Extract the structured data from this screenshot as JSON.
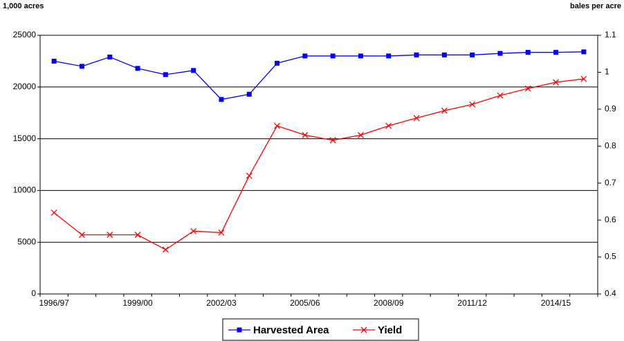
{
  "chart_data": {
    "type": "line",
    "y_label": "1,000 acres",
    "y2_label": "bales per acre",
    "categories": [
      "1996/97",
      null,
      null,
      "1999/00",
      null,
      null,
      "2002/03",
      null,
      null,
      "2005/06",
      null,
      null,
      "2008/09",
      null,
      null,
      "2011/12",
      null,
      null,
      "2014/15",
      null
    ],
    "series": [
      {
        "name": "Harvested Area",
        "color": "#0000ff",
        "marker": "square",
        "values": [
          22500,
          22000,
          22900,
          21800,
          21200,
          21600,
          18800,
          19300,
          22300,
          23000,
          23000,
          23000,
          23000,
          23100,
          23100,
          23100,
          23250,
          23350,
          23350,
          23400
        ]
      },
      {
        "name": "Yield",
        "color": "#ff0000",
        "marker": "x",
        "axis": "y2",
        "values": [
          0.62,
          0.56,
          0.56,
          0.56,
          0.52,
          0.57,
          0.566,
          0.72,
          0.855,
          0.83,
          0.816,
          0.83,
          0.855,
          0.876,
          0.896,
          0.913,
          0.937,
          0.956,
          0.973,
          0.982
        ]
      }
    ],
    "ylim": [
      0,
      25000
    ],
    "yticks": [
      0,
      5000,
      10000,
      15000,
      20000,
      25000
    ],
    "y2lim": [
      0.4,
      1.1
    ],
    "y2ticks": [
      0.4,
      0.5,
      0.6,
      0.7,
      0.8,
      0.9,
      1,
      1.1
    ],
    "grid": true,
    "legend": "bottom"
  }
}
